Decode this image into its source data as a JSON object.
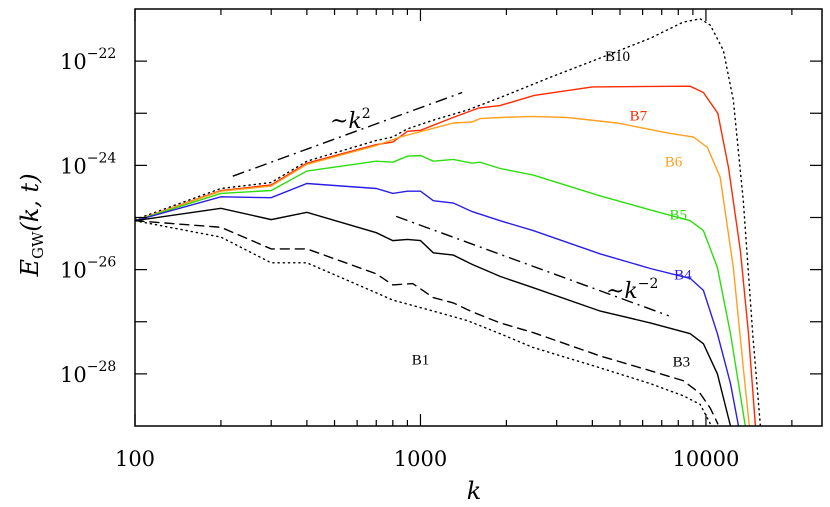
{
  "chart_data": {
    "type": "line",
    "xscale": "log",
    "yscale": "log",
    "xlim": [
      100,
      25500
    ],
    "ylim": [
      1e-29,
      1e-21
    ],
    "xlabel": "k",
    "ylabel": {
      "main": "E",
      "sub": "GW",
      "args": "(k, t)"
    },
    "grid": false,
    "xticks": [
      {
        "value": 100,
        "label": "100"
      },
      {
        "value": 1000,
        "label": "1000"
      },
      {
        "value": 10000,
        "label": "10000"
      }
    ],
    "yticks": [
      {
        "value": 1e-22,
        "base": "10",
        "exp": "−22"
      },
      {
        "value": 1e-24,
        "base": "10",
        "exp": "−24"
      },
      {
        "value": 1e-26,
        "base": "10",
        "exp": "−26"
      },
      {
        "value": 1e-28,
        "base": "10",
        "exp": "−28"
      }
    ],
    "series": [
      {
        "name": "B10",
        "color": "#000000",
        "style": "dotted",
        "k": [
          100,
          200,
          300,
          400,
          700,
          800,
          900,
          1109,
          1459,
          1901,
          2850,
          4266,
          6383,
          8330,
          9550,
          10360,
          11510,
          12470,
          13520,
          14580,
          15520
        ],
        "E": [
          9.1e-26,
          3.6e-25,
          4.7e-25,
          1.2e-24,
          3e-24,
          3.5e-24,
          5e-24,
          7.4e-24,
          1.15e-23,
          2e-23,
          4.9e-23,
          1.15e-22,
          2.75e-22,
          5.6e-22,
          6.5e-22,
          4.9e-22,
          1.6e-22,
          1.8e-23,
          2.1e-25,
          5.9e-28,
          1e-29
        ]
      },
      {
        "name": "B7",
        "color": "#ff2a00",
        "style": "solid",
        "k": [
          100,
          200,
          300,
          400,
          700,
          800,
          900,
          1000,
          1300,
          1600,
          1900,
          2500,
          4000,
          8800,
          9800,
          11000,
          12000,
          13200,
          14100,
          14900
        ],
        "E": [
          8.7e-26,
          3.3e-25,
          4.2e-25,
          1.1e-24,
          2.5e-24,
          2.8e-24,
          4.5e-24,
          4.7e-24,
          8.3e-24,
          1.26e-23,
          1.4e-23,
          2.2e-23,
          3.2e-23,
          3.3e-23,
          2.5e-23,
          1e-23,
          9.1e-25,
          2.3e-26,
          5.9e-28,
          1e-29
        ]
      },
      {
        "name": "B6",
        "color": "#ffa020",
        "style": "solid",
        "k": [
          100,
          200,
          300,
          400,
          700,
          849,
          1303,
          1517,
          1618,
          1901,
          2483,
          3266,
          4887,
          7328,
          9036,
          10120,
          11220,
          12470,
          13520,
          14190
        ],
        "E": [
          8.7e-26,
          3.2e-25,
          4e-25,
          1.05e-24,
          2.4e-24,
          3.5e-24,
          6.5e-24,
          6.8e-24,
          7.9e-24,
          8.3e-24,
          8.7e-24,
          8.3e-24,
          6.5e-24,
          4.2e-24,
          3.5e-24,
          2.2e-24,
          5.9e-25,
          1.1e-26,
          1.3e-28,
          1e-29
        ]
      },
      {
        "name": "B5",
        "color": "#2edd10",
        "style": "solid",
        "k": [
          100,
          200,
          300,
          400,
          700,
          800,
          900,
          1000,
          1109,
          1303,
          1517,
          1618,
          1901,
          2483,
          4266,
          6383,
          8810,
          9795,
          10965,
          12190,
          13740
        ],
        "E": [
          8.7e-26,
          2.9e-25,
          3.3e-25,
          7.8e-25,
          1.2e-24,
          1.15e-24,
          1.5e-24,
          1.55e-24,
          1.2e-24,
          1.3e-24,
          1.1e-24,
          1.15e-24,
          8.7e-25,
          6.5e-25,
          2.6e-25,
          1.4e-25,
          8.7e-26,
          5.6e-26,
          1.1e-26,
          5.9e-28,
          1e-29
        ]
      },
      {
        "name": "B4",
        "color": "#2a1ee6",
        "style": "solid",
        "k": [
          100,
          200,
          300,
          400,
          700,
          800,
          900,
          1000,
          1109,
          1303,
          1517,
          1901,
          2483,
          4266,
          6383,
          8810,
          9795,
          10965,
          12190,
          13000
        ],
        "E": [
          8.7e-26,
          2.5e-25,
          2.4e-25,
          4.5e-25,
          3.6e-25,
          2.9e-25,
          3.2e-25,
          3.2e-25,
          2.1e-25,
          1.9e-25,
          1.3e-25,
          8.7e-26,
          5.6e-26,
          2e-26,
          1.05e-26,
          6.8e-27,
          4e-27,
          5.9e-28,
          6.5e-29,
          1e-29
        ]
      },
      {
        "name": "B3",
        "color": "#000000",
        "style": "solid",
        "k": [
          100,
          200,
          300,
          400,
          700,
          800,
          900,
          1000,
          1109,
          1303,
          1517,
          1901,
          2483,
          4266,
          6383,
          8810,
          9795,
          10965,
          12190
        ],
        "E": [
          8.7e-26,
          1.5e-25,
          9.1e-26,
          1.26e-25,
          5.1e-26,
          3.6e-26,
          3.8e-26,
          3.6e-26,
          2.1e-26,
          1.9e-26,
          1.26e-26,
          7.4e-27,
          4.5e-27,
          1.6e-27,
          9.5e-28,
          5.9e-28,
          3.8e-28,
          1e-28,
          1e-29
        ]
      },
      {
        "color": "#000000",
        "style": "dashed",
        "k": [
          100,
          200,
          300,
          400,
          700,
          800,
          940,
          1109,
          1303,
          1517,
          1901,
          2483,
          4266,
          6383,
          8330,
          9550,
          10360,
          11000
        ],
        "E": [
          8.7e-26,
          6.5e-26,
          2.5e-26,
          2.5e-26,
          8.3e-27,
          5.1e-27,
          5.4e-27,
          2.9e-27,
          2.3e-27,
          1.55e-27,
          9.5e-28,
          6.2e-28,
          2.2e-28,
          1.15e-28,
          7.4e-29,
          4.2e-29,
          2.2e-29,
          1.1e-29
        ]
      },
      {
        "name": "B1",
        "color": "#000000",
        "style": "dotted",
        "k": [
          100,
          200,
          300,
          400,
          700,
          800,
          1109,
          1459,
          1901,
          2483,
          4266,
          6383,
          8330,
          9550,
          10360
        ],
        "E": [
          8.7e-26,
          4.2e-26,
          1.35e-26,
          1.35e-26,
          3.6e-27,
          2.6e-27,
          1.6e-27,
          1.05e-27,
          5.9e-28,
          3.2e-28,
          1.3e-28,
          6.5e-29,
          3.8e-29,
          2.6e-29,
          1.1e-29
        ]
      }
    ],
    "reference_lines": [
      {
        "label": "~k",
        "exp": "2",
        "style": "dashdot",
        "k": [
          220,
          1400
        ],
        "E": [
          6.2e-25,
          2.5e-23
        ]
      },
      {
        "label": "~k",
        "exp": "−2",
        "style": "dashdot",
        "k": [
          822,
          7410
        ],
        "E": [
          1.05e-25,
          1.3e-27
        ]
      }
    ],
    "annotations": [
      {
        "text": "B10",
        "color": "#000000",
        "k": 4900,
        "E": 1e-22
      },
      {
        "text": "B7",
        "color": "#ff2a00",
        "k": 5800,
        "E": 7.3e-24
      },
      {
        "text": "B6",
        "color": "#ffa020",
        "k": 7700,
        "E": 9.5e-25
      },
      {
        "text": "B5",
        "color": "#2edd10",
        "k": 8000,
        "E": 9.2e-26
      },
      {
        "text": "B4",
        "color": "#2a1ee6",
        "k": 8300,
        "E": 6.5e-27
      },
      {
        "text": "B3",
        "color": "#000000",
        "k": 8200,
        "E": 1.4e-28
      },
      {
        "text": "B1",
        "color": "#000000",
        "k": 1000,
        "E": 1.5e-28
      }
    ]
  }
}
